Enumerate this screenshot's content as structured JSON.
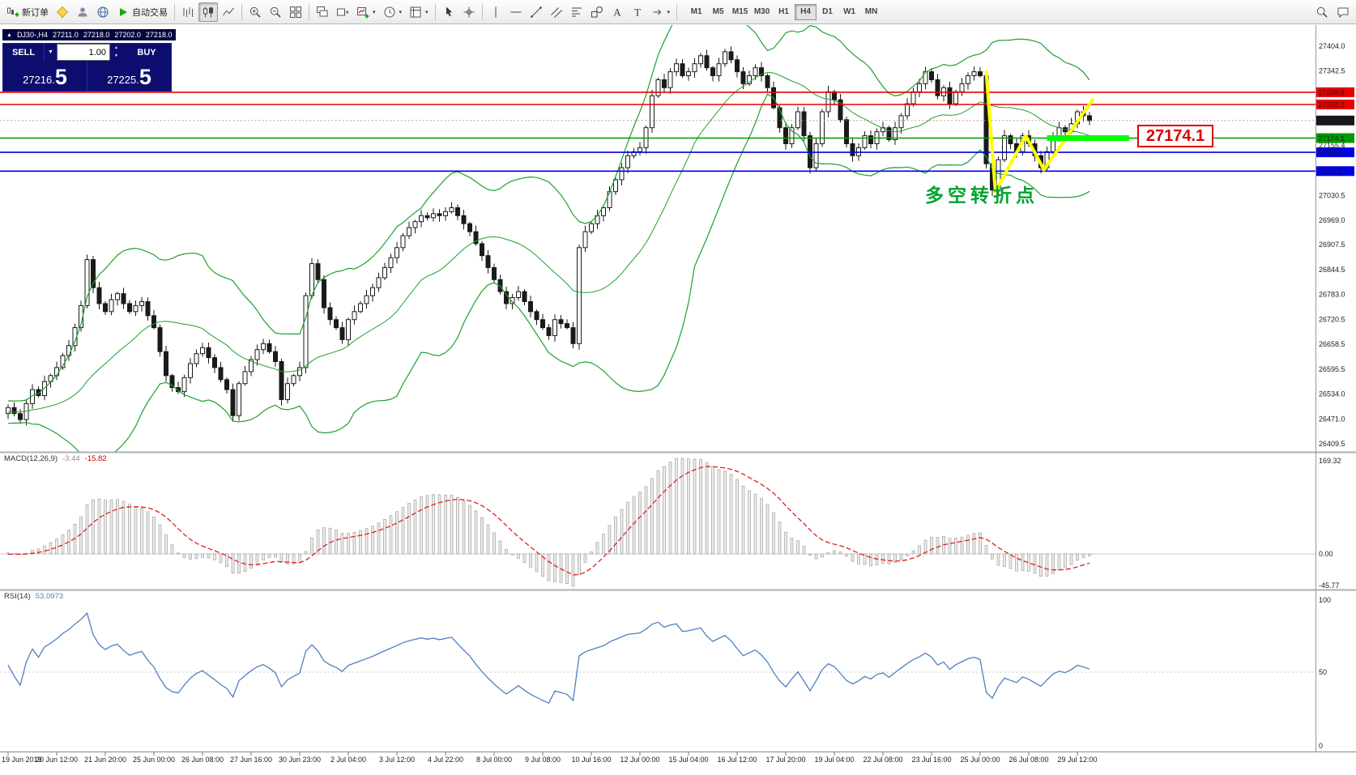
{
  "toolbar": {
    "new_order_label": "新订单",
    "auto_trading_label": "自动交易",
    "caret": "▾",
    "timeframes": [
      "M1",
      "M5",
      "M15",
      "M30",
      "H1",
      "H4",
      "D1",
      "W1",
      "MN"
    ],
    "active_timeframe": "H4"
  },
  "chart_info": {
    "collapse_icon": "▲",
    "symbol_period": "DJ30-,H4",
    "open": "27211.0",
    "high": "27218.0",
    "low": "27202.0",
    "close": "27218.0"
  },
  "trade_panel": {
    "sell_label": "SELL",
    "buy_label": "BUY",
    "volume": "1.00",
    "caret": "▼",
    "spin_up": "▲",
    "spin_down": "▼",
    "sell_price_small": "27216.",
    "sell_price_big": "5",
    "buy_price_small": "27225.",
    "buy_price_big": "5"
  },
  "indicators": {
    "macd": {
      "name": "MACD(12,26,9)",
      "value_main": "-3.44",
      "value_signal": "-15.82",
      "axis_max": "169.32",
      "axis_zero": "0.00",
      "axis_min": "-45.77"
    },
    "rsi": {
      "name": "RSI(14)",
      "value": "53.0973",
      "axis_max": "100",
      "axis_mid": "50",
      "axis_min": "0"
    }
  },
  "annotations": {
    "price_callout": "27174.1",
    "turning_point_text": "多空转折点",
    "zigzag": {
      "color": "#ffff00",
      "points": [
        {
          "bar": 161,
          "price": 27340
        },
        {
          "bar": 162.5,
          "price": 27040
        },
        {
          "bar": 167.5,
          "price": 27180
        },
        {
          "bar": 170.5,
          "price": 27095
        },
        {
          "bar": 178.5,
          "price": 27270
        }
      ]
    },
    "highlight": {
      "color": "#00ff00",
      "price": 27174.1,
      "bar_start": 171,
      "bar_end": 184.5
    }
  },
  "chart_data": {
    "type": "candlestick",
    "symbol": "DJ30-",
    "timeframe": "H4",
    "price_range": [
      26409.5,
      27404.0
    ],
    "ohlc_header": {
      "open": 27211.0,
      "high": 27218.0,
      "low": 27202.0,
      "close": 27218.0
    },
    "closes": [
      26500,
      26485,
      26470,
      26510,
      26545,
      26530,
      26565,
      26580,
      26600,
      26630,
      26655,
      26700,
      26755,
      26870,
      26800,
      26760,
      26740,
      26770,
      26785,
      26760,
      26740,
      26755,
      26765,
      26730,
      26700,
      26640,
      26580,
      26550,
      26540,
      26575,
      26610,
      26635,
      26650,
      26625,
      26600,
      26570,
      26545,
      26480,
      26560,
      26590,
      26620,
      26645,
      26660,
      26640,
      26615,
      26520,
      26560,
      26580,
      26600,
      26780,
      26860,
      26820,
      26750,
      26720,
      26700,
      26670,
      26720,
      26740,
      26760,
      26780,
      26800,
      26825,
      26850,
      26875,
      26900,
      26930,
      26950,
      26965,
      26980,
      26975,
      26985,
      26980,
      26990,
      27000,
      26980,
      26960,
      26940,
      26910,
      26880,
      26850,
      26820,
      26790,
      26760,
      26775,
      26790,
      26765,
      26740,
      26720,
      26700,
      26680,
      26720,
      26710,
      26700,
      26660,
      26900,
      26940,
      26960,
      26980,
      27000,
      27040,
      27070,
      27100,
      27130,
      27140,
      27150,
      27200,
      27280,
      27320,
      27300,
      27340,
      27360,
      27330,
      27340,
      27360,
      27380,
      27350,
      27330,
      27360,
      27390,
      27370,
      27340,
      27310,
      27330,
      27350,
      27330,
      27300,
      27250,
      27200,
      27160,
      27200,
      27240,
      27180,
      27100,
      27160,
      27240,
      27290,
      27270,
      27220,
      27160,
      27130,
      27150,
      27180,
      27160,
      27190,
      27200,
      27170,
      27200,
      27230,
      27260,
      27290,
      27310,
      27340,
      27320,
      27280,
      27300,
      27260,
      27290,
      27310,
      27330,
      27340,
      27330,
      27110,
      27044,
      27120,
      27180,
      27160,
      27140,
      27180,
      27160,
      27130,
      27100,
      27140,
      27180,
      27200,
      27190,
      27210,
      27240,
      27230,
      27218
    ],
    "bollinger": {
      "period": 20,
      "deviation": 2,
      "color": "#1fa12c"
    },
    "price_axis_ticks": [
      27404.0,
      27342.5,
      27155.4,
      27030.5,
      26969.0,
      26907.5,
      26844.5,
      26783.0,
      26720.5,
      26658.5,
      26595.5,
      26534.0,
      26471.0,
      26409.5
    ],
    "levels": [
      {
        "price": 27288.8,
        "label": "27288.8",
        "color": "#e80000",
        "kind": "resistance"
      },
      {
        "price": 27258.2,
        "label": "27258.2",
        "color": "#e80000",
        "kind": "resistance"
      },
      {
        "price": 27174.1,
        "label": "27174.1",
        "color": "#009a00",
        "kind": "pivot"
      },
      {
        "price": 27138.4,
        "label": "27138.4",
        "color": "#0000e1",
        "kind": "support"
      },
      {
        "price": 27091.4,
        "label": "27091.4",
        "color": "#0000e1",
        "kind": "support"
      }
    ],
    "current_price": {
      "price": 27218.0,
      "label": "27218.0",
      "color": "#16161e"
    },
    "time_labels": [
      "19 Jun 2019",
      "20 Jun 12:00",
      "21 Jun 20:00",
      "25 Jun 00:00",
      "26 Jun 08:00",
      "27 Jun 16:00",
      "30 Jun 23:00",
      "2 Jul 04:00",
      "3 Jul 12:00",
      "4 Jul 22:00",
      "8 Jul 00:00",
      "9 Jul 08:00",
      "10 Jul 16:00",
      "12 Jul 00:00",
      "15 Jul 04:00",
      "16 Jul 12:00",
      "17 Jul 20:00",
      "19 Jul 04:00",
      "22 Jul 08:00",
      "23 Jul 16:00",
      "25 Jul 00:00",
      "26 Jul 08:00",
      "29 Jul 12:00"
    ]
  }
}
